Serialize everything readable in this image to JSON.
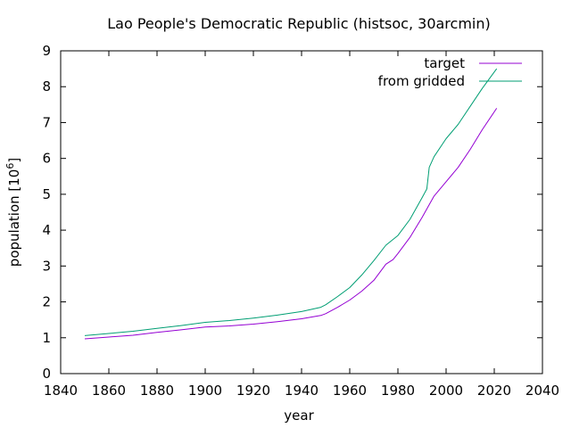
{
  "chart_data": {
    "type": "line",
    "title": "Lao People's Democratic Republic (histsoc, 30arcmin)",
    "xlabel": "year",
    "ylabel_main": "population [10",
    "ylabel_sup": "6",
    "ylabel_close": "]",
    "xlim": [
      1840,
      2040
    ],
    "ylim": [
      0,
      9
    ],
    "xticks": [
      1840,
      1860,
      1880,
      1900,
      1920,
      1940,
      1960,
      1980,
      2000,
      2020,
      2040
    ],
    "yticks": [
      0,
      1,
      2,
      3,
      4,
      5,
      6,
      7,
      8,
      9
    ],
    "grid": false,
    "legend_position": "top-right",
    "series": [
      {
        "name": "target",
        "color": "#9400d3",
        "points": [
          [
            1850,
            0.97
          ],
          [
            1860,
            1.02
          ],
          [
            1870,
            1.07
          ],
          [
            1880,
            1.15
          ],
          [
            1890,
            1.22
          ],
          [
            1900,
            1.3
          ],
          [
            1910,
            1.33
          ],
          [
            1920,
            1.38
          ],
          [
            1930,
            1.45
          ],
          [
            1940,
            1.53
          ],
          [
            1948,
            1.62
          ],
          [
            1950,
            1.67
          ],
          [
            1955,
            1.85
          ],
          [
            1960,
            2.05
          ],
          [
            1965,
            2.3
          ],
          [
            1970,
            2.6
          ],
          [
            1975,
            3.05
          ],
          [
            1978,
            3.18
          ],
          [
            1980,
            3.35
          ],
          [
            1985,
            3.8
          ],
          [
            1990,
            4.35
          ],
          [
            1995,
            4.95
          ],
          [
            2000,
            5.35
          ],
          [
            2005,
            5.75
          ],
          [
            2010,
            6.25
          ],
          [
            2015,
            6.8
          ],
          [
            2021,
            7.4
          ]
        ]
      },
      {
        "name": "from gridded",
        "color": "#009e73",
        "points": [
          [
            1850,
            1.06
          ],
          [
            1860,
            1.12
          ],
          [
            1870,
            1.18
          ],
          [
            1880,
            1.26
          ],
          [
            1890,
            1.34
          ],
          [
            1900,
            1.43
          ],
          [
            1910,
            1.48
          ],
          [
            1920,
            1.55
          ],
          [
            1930,
            1.63
          ],
          [
            1940,
            1.73
          ],
          [
            1948,
            1.85
          ],
          [
            1950,
            1.92
          ],
          [
            1955,
            2.15
          ],
          [
            1960,
            2.4
          ],
          [
            1965,
            2.75
          ],
          [
            1970,
            3.15
          ],
          [
            1975,
            3.58
          ],
          [
            1980,
            3.85
          ],
          [
            1985,
            4.3
          ],
          [
            1990,
            4.9
          ],
          [
            1992,
            5.15
          ],
          [
            1993,
            5.75
          ],
          [
            1995,
            6.05
          ],
          [
            2000,
            6.55
          ],
          [
            2005,
            6.95
          ],
          [
            2010,
            7.45
          ],
          [
            2015,
            7.95
          ],
          [
            2021,
            8.5
          ]
        ]
      }
    ]
  }
}
